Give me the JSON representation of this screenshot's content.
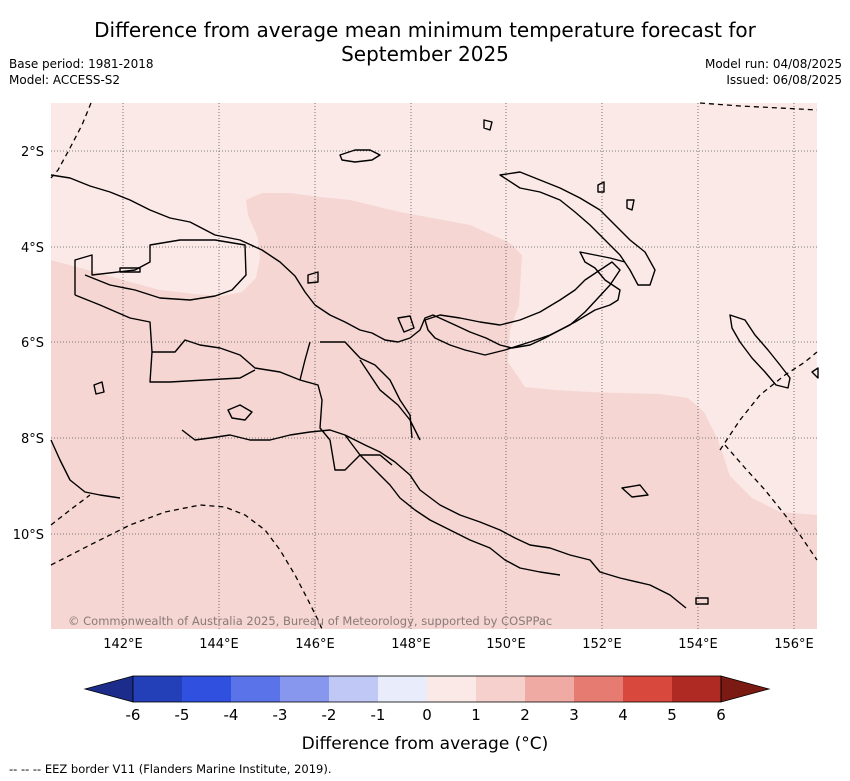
{
  "title_line1": "Difference from average mean minimum temperature forecast for",
  "title_line2": "September 2025",
  "base_period": "Base period: 1981-2018",
  "model": "Model: ACCESS-S2",
  "model_run": "Model run: 04/08/2025",
  "issued": "Issued: 06/08/2025",
  "map": {
    "lat_labels": [
      "2°S",
      "4°S",
      "6°S",
      "8°S",
      "10°S"
    ],
    "lon_labels": [
      "142°E",
      "144°E",
      "146°E",
      "148°E",
      "150°E",
      "152°E",
      "154°E",
      "156°E"
    ],
    "copyright": "© Commonwealth of Australia 2025, Bureau of Meteorology, supported by COSPPac",
    "colors": {
      "anomaly_0_to_1": "#fbe9e7",
      "anomaly_1_to_2": "#f5d6d2",
      "coastline": "#000000",
      "eez_border": "#000000",
      "grid": "#555555"
    }
  },
  "colorbar": {
    "ticks": [
      "-6",
      "-5",
      "-4",
      "-3",
      "-2",
      "-1",
      "0",
      "1",
      "2",
      "3",
      "4",
      "5",
      "6"
    ],
    "label": "Difference from average (°C)",
    "colors": [
      "#1b2c8a",
      "#2440b8",
      "#3050e0",
      "#5a73e8",
      "#8797ee",
      "#c0c8f6",
      "#e8ecfb",
      "#fbe9e7",
      "#f5d0cc",
      "#eeaaa3",
      "#e67b72",
      "#d9483c",
      "#ae2a22",
      "#7a1a12"
    ]
  },
  "footnote": "-- -- -- EEZ border V11 (Flanders Marine Institute, 2019)."
}
